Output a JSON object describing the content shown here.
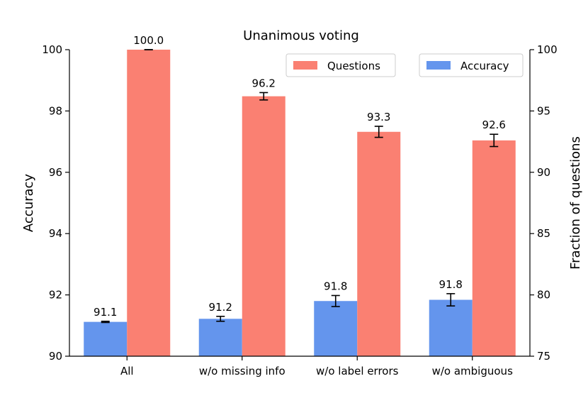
{
  "chart_data": {
    "type": "bar",
    "title": "Unanimous voting",
    "categories": [
      "All",
      "w/o missing info",
      "w/o label errors",
      "w/o ambiguous"
    ],
    "series": [
      {
        "name": "Accuracy",
        "axis": "left",
        "color": "#6495ED",
        "values": [
          91.12,
          91.22,
          91.8,
          91.84
        ],
        "errors": [
          0.02,
          0.08,
          0.18,
          0.2
        ],
        "labels": [
          "91.1",
          "91.2",
          "91.8",
          "91.8"
        ]
      },
      {
        "name": "Questions",
        "axis": "right",
        "color": "#FA8072",
        "values": [
          100.0,
          96.2,
          93.3,
          92.6
        ],
        "errors": [
          0.0,
          0.3,
          0.45,
          0.5
        ],
        "labels": [
          "100.0",
          "96.2",
          "93.3",
          "92.6"
        ]
      }
    ],
    "ylabel_left": "Accuracy",
    "ylim_left": [
      90,
      100
    ],
    "yticks_left": [
      90,
      92,
      94,
      96,
      98,
      100
    ],
    "ylabel_right": "Fraction of questions",
    "ylim_right": [
      75,
      100
    ],
    "yticks_right": [
      75,
      80,
      85,
      90,
      95,
      100
    ],
    "legend": [
      {
        "name": "Questions",
        "placement": "top-center"
      },
      {
        "name": "Accuracy",
        "placement": "top-right"
      }
    ],
    "grid": false
  }
}
